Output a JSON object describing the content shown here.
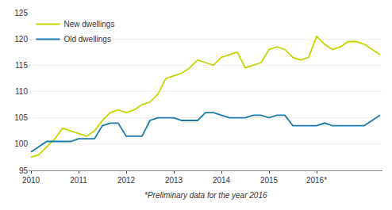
{
  "chart_data": {
    "type": "line",
    "categories": [
      "2010",
      null,
      null,
      null,
      null,
      null,
      "2011",
      null,
      null,
      null,
      null,
      null,
      "2012",
      null,
      null,
      null,
      null,
      null,
      "2013",
      null,
      null,
      null,
      null,
      null,
      "2014",
      null,
      null,
      null,
      null,
      null,
      "2015",
      null,
      null,
      null,
      null,
      null,
      "2016*",
      null,
      null,
      null,
      null,
      null,
      null,
      null,
      null
    ],
    "series": [
      {
        "name": "New dwellings",
        "color": "#c8d400",
        "values": [
          97.5,
          98.0,
          99.5,
          101.0,
          103.0,
          102.5,
          102.0,
          101.5,
          102.5,
          104.5,
          106.0,
          106.5,
          106.0,
          106.5,
          107.5,
          108.0,
          109.5,
          112.5,
          113.0,
          113.5,
          114.5,
          116.0,
          115.5,
          115.0,
          116.5,
          117.0,
          117.5,
          114.5,
          115.0,
          115.5,
          118.0,
          118.5,
          118.0,
          116.5,
          116.0,
          116.5,
          120.5,
          119.0,
          118.0,
          118.5,
          119.5,
          119.5,
          119.0,
          118.0,
          117.0
        ]
      },
      {
        "name": "Old dwellings",
        "color": "#1a7aab",
        "values": [
          98.5,
          99.5,
          100.5,
          100.5,
          100.5,
          100.5,
          101.0,
          101.0,
          101.0,
          103.5,
          104.0,
          104.0,
          101.5,
          101.5,
          101.5,
          104.5,
          105.0,
          105.0,
          105.0,
          104.5,
          104.5,
          104.5,
          106.0,
          106.0,
          105.5,
          105.0,
          105.0,
          105.0,
          105.5,
          105.5,
          105.0,
          105.5,
          105.5,
          103.5,
          103.5,
          103.5,
          103.5,
          104.0,
          103.5,
          103.5,
          103.5,
          103.5,
          103.5,
          104.5,
          105.5
        ]
      }
    ],
    "ylim": [
      95,
      125
    ],
    "yticks": [
      95,
      100,
      105,
      110,
      115,
      120,
      125
    ],
    "grid": true,
    "legend": "upper left",
    "annotations": [
      "*Preliminary data for the year 2016"
    ]
  }
}
